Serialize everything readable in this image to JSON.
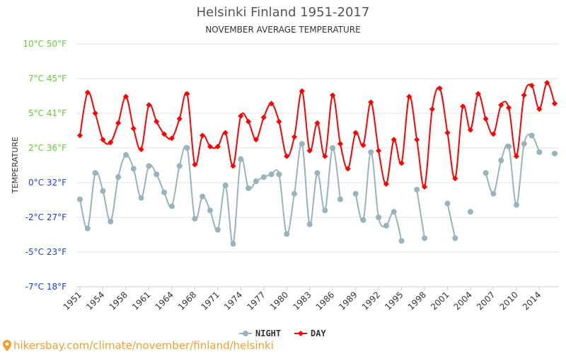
{
  "chart_data": {
    "type": "line",
    "title": "Helsinki Finland 1951-2017",
    "subtitle": "NOVEMBER AVERAGE TEMPERATURE",
    "ylabel": "TEMPERATURE",
    "y_unit": "°C",
    "ylim": [
      -7.5,
      10
    ],
    "y_ticks": [
      {
        "c": 10,
        "label_c": "10°C",
        "label_f": "50°F",
        "color": "#66cc33"
      },
      {
        "c": 7.5,
        "label_c": "7°C",
        "label_f": "45°F",
        "color": "#66cc33"
      },
      {
        "c": 5,
        "label_c": "5°C",
        "label_f": "41°F",
        "color": "#66cc33"
      },
      {
        "c": 2.5,
        "label_c": "2°C",
        "label_f": "36°F",
        "color": "#66cc33"
      },
      {
        "c": 0,
        "label_c": "0°C",
        "label_f": "32°F",
        "color": "#1a3ee8"
      },
      {
        "c": -2.5,
        "label_c": "-2°C",
        "label_f": "27°F",
        "color": "#1a3ee8"
      },
      {
        "c": -5,
        "label_c": "-5°C",
        "label_f": "23°F",
        "color": "#1a3ee8"
      },
      {
        "c": -7.5,
        "label_c": "-7°C",
        "label_f": "18°F",
        "color": "#1a3ee8"
      }
    ],
    "grid": true,
    "legend_placement": "bottom",
    "x_tick_every": 3,
    "x_tick_labels": [
      "1951",
      "1954",
      "1958",
      "1961",
      "1964",
      "1968",
      "1971",
      "1974",
      "1977",
      "1980",
      "1983",
      "1986",
      "1989",
      "1992",
      "1995",
      "1998",
      "2001",
      "2004",
      "2007",
      "2010",
      "2014"
    ],
    "series": [
      {
        "name": "NIGHT",
        "color": "#97b4bd",
        "marker": "circle",
        "values": [
          -1.2,
          -3.3,
          0.7,
          -0.6,
          -2.8,
          0.4,
          2.0,
          1.0,
          -1.1,
          1.2,
          0.6,
          -0.7,
          -1.7,
          1.2,
          2.5,
          -2.6,
          -1.0,
          -2.0,
          -3.4,
          -0.2,
          -4.4,
          1.7,
          -0.4,
          0.1,
          0.4,
          0.6,
          0.6,
          -3.7,
          -0.8,
          2.8,
          -3.0,
          0.7,
          -2.0,
          2.5,
          -1.2,
          null,
          -0.8,
          -2.7,
          2.2,
          -2.5,
          -3.1,
          -2.1,
          -4.2,
          null,
          -0.5,
          -4.0,
          null,
          null,
          -1.5,
          -4.0,
          null,
          -2.1,
          null,
          0.7,
          -0.8,
          1.6,
          2.6,
          -1.6,
          2.8,
          3.4,
          2.2,
          null,
          2.1
        ]
      },
      {
        "name": "DAY",
        "color": "#ff0000",
        "marker": "diamond",
        "values": [
          3.4,
          6.5,
          5.0,
          3.1,
          2.9,
          4.3,
          6.2,
          3.9,
          2.4,
          5.6,
          4.4,
          3.5,
          3.2,
          4.6,
          6.4,
          1.3,
          3.4,
          2.6,
          2.6,
          3.6,
          1.2,
          4.8,
          4.4,
          3.1,
          4.7,
          5.7,
          4.4,
          1.9,
          3.3,
          6.6,
          2.3,
          4.3,
          1.9,
          6.3,
          2.8,
          1.0,
          3.6,
          2.7,
          5.8,
          2.3,
          -0.1,
          3.1,
          1.4,
          6.2,
          3.1,
          -0.3,
          5.3,
          6.8,
          3.6,
          0.3,
          5.5,
          3.8,
          6.4,
          4.6,
          3.5,
          5.6,
          5.4,
          1.9,
          6.3,
          7.0,
          5.3,
          7.2,
          5.7
        ]
      }
    ]
  },
  "footer": {
    "text": "hikersbay.com/climate/november/finland/helsinki",
    "icon": "location-pin-icon",
    "color": "#f0a030"
  }
}
